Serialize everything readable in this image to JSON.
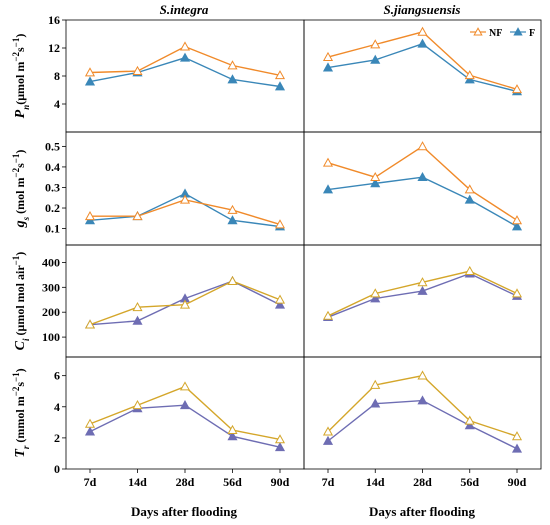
{
  "columns": [
    "S.integra",
    "S.jiangsuensis"
  ],
  "xlabel": "Days after flooding",
  "legend": {
    "placement": "top-right of right column, first row",
    "entries": [
      {
        "name": "NF",
        "marker": "open-triangle",
        "color": "#f08a2a"
      },
      {
        "name": "F",
        "marker": "filled-triangle",
        "color": "#3a87b8"
      }
    ]
  },
  "chart_data": {
    "type": "line",
    "categories": [
      "7d",
      "14d",
      "28d",
      "56d",
      "90d"
    ],
    "panels": [
      {
        "ylabel": "Pn(μmol m−2s−1)",
        "ylabel_main": "P",
        "ylabel_sub": "n",
        "ylabel_unit": "(μmol m",
        "ylabel_exp1": "−2",
        "ylabel_mid": "s",
        "ylabel_exp2": "−1",
        "ylabel_end": ")",
        "ylim": [
          0,
          16
        ],
        "yticks": [
          "4",
          "8",
          "12",
          "16"
        ],
        "ytick_values": [
          4,
          8,
          12,
          16
        ],
        "colors": {
          "NF": "#f08a2a",
          "F": "#3a87b8"
        },
        "left": {
          "NF": [
            8.5,
            8.7,
            12.2,
            9.5,
            8.1
          ],
          "F": [
            7.2,
            8.5,
            10.6,
            7.5,
            6.5
          ]
        },
        "right": {
          "NF": [
            10.7,
            12.5,
            14.3,
            8.1,
            6.1
          ],
          "F": [
            9.2,
            10.3,
            12.6,
            7.5,
            5.8
          ]
        }
      },
      {
        "ylabel": "gs (mol m−2s−1)",
        "ylabel_main": "g",
        "ylabel_sub": "s",
        "ylabel_unit": " (mol m",
        "ylabel_exp1": "−2",
        "ylabel_mid": "s",
        "ylabel_exp2": "−1",
        "ylabel_end": ")",
        "ylim": [
          0.02,
          0.57
        ],
        "yticks": [
          "0.1",
          "0.2",
          "0.3",
          "0.4",
          "0.5"
        ],
        "ytick_values": [
          0.1,
          0.2,
          0.3,
          0.4,
          0.5
        ],
        "colors": {
          "NF": "#f08a2a",
          "F": "#3a87b8"
        },
        "left": {
          "NF": [
            0.16,
            0.16,
            0.24,
            0.19,
            0.12
          ],
          "F": [
            0.14,
            0.16,
            0.27,
            0.14,
            0.11
          ]
        },
        "right": {
          "NF": [
            0.42,
            0.35,
            0.5,
            0.29,
            0.14
          ],
          "F": [
            0.29,
            0.32,
            0.35,
            0.24,
            0.11
          ]
        }
      },
      {
        "ylabel": "Ci (μmol mol air−1)",
        "ylabel_main": "C",
        "ylabel_sub": "i",
        "ylabel_unit": " (μmol mol air",
        "ylabel_exp1": "−1",
        "ylabel_mid": "",
        "ylabel_exp2": "",
        "ylabel_end": ")",
        "ylim": [
          20,
          470
        ],
        "yticks": [
          "100",
          "200",
          "300",
          "400"
        ],
        "ytick_values": [
          100,
          200,
          300,
          400
        ],
        "colors": {
          "NF": "#d4a62a",
          "F": "#6e6db3"
        },
        "left": {
          "NF": [
            150,
            220,
            230,
            325,
            250
          ],
          "F": [
            150,
            165,
            255,
            325,
            230
          ]
        },
        "right": {
          "NF": [
            185,
            275,
            320,
            365,
            275
          ],
          "F": [
            180,
            255,
            285,
            355,
            265
          ]
        }
      },
      {
        "ylabel": "Tr (mmol m−2s−1)",
        "ylabel_main": "T",
        "ylabel_sub": "r",
        "ylabel_unit": " (mmol m",
        "ylabel_exp1": "−2",
        "ylabel_mid": "s",
        "ylabel_exp2": "−1",
        "ylabel_end": ")",
        "ylim": [
          0,
          7.2
        ],
        "yticks": [
          "0",
          "2",
          "4",
          "6"
        ],
        "ytick_values": [
          0,
          2,
          4,
          6
        ],
        "colors": {
          "NF": "#d4a62a",
          "F": "#6e6db3"
        },
        "left": {
          "NF": [
            2.9,
            4.1,
            5.3,
            2.5,
            1.9
          ],
          "F": [
            2.4,
            3.9,
            4.1,
            2.1,
            1.4
          ]
        },
        "right": {
          "NF": [
            2.4,
            5.4,
            6.0,
            3.1,
            2.1
          ],
          "F": [
            1.8,
            4.2,
            4.4,
            2.8,
            1.3
          ]
        }
      }
    ]
  }
}
